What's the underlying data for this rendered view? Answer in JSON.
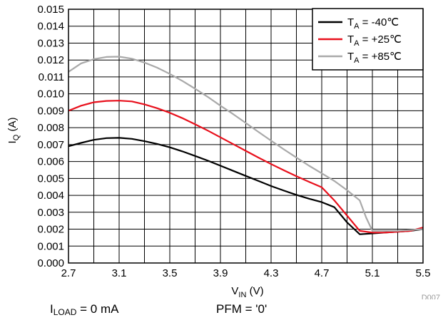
{
  "chart_data": {
    "type": "line",
    "xlabel": {
      "main": "V",
      "sub": "IN",
      "suffix": " (V)"
    },
    "ylabel": {
      "main": "I",
      "sub": "Q",
      "suffix": " (A)"
    },
    "xlim": [
      2.7,
      5.5
    ],
    "ylim": [
      0,
      0.015
    ],
    "x_ticks": [
      "2.7",
      "3.1",
      "3.5",
      "3.9",
      "4.3",
      "4.7",
      "5.1",
      "5.5"
    ],
    "y_ticks": [
      "0.000",
      "0.001",
      "0.002",
      "0.003",
      "0.004",
      "0.005",
      "0.006",
      "0.007",
      "0.008",
      "0.009",
      "0.010",
      "0.011",
      "0.012",
      "0.013",
      "0.014",
      "0.015"
    ],
    "grid": true,
    "legend_position": "top-right",
    "series": [
      {
        "label": {
          "main": "T",
          "sub": "A",
          "suffix": " = -40℃"
        },
        "color": "#000000",
        "points": [
          [
            2.7,
            0.0069
          ],
          [
            2.8,
            0.0071
          ],
          [
            2.9,
            0.00728
          ],
          [
            3.0,
            0.00738
          ],
          [
            3.1,
            0.0074
          ],
          [
            3.2,
            0.00734
          ],
          [
            3.3,
            0.0072
          ],
          [
            3.4,
            0.00704
          ],
          [
            3.5,
            0.00684
          ],
          [
            3.6,
            0.0066
          ],
          [
            3.7,
            0.00633
          ],
          [
            3.8,
            0.00605
          ],
          [
            3.9,
            0.00575
          ],
          [
            4.0,
            0.00545
          ],
          [
            4.1,
            0.00515
          ],
          [
            4.2,
            0.00485
          ],
          [
            4.3,
            0.00455
          ],
          [
            4.4,
            0.00428
          ],
          [
            4.5,
            0.00403
          ],
          [
            4.6,
            0.0038
          ],
          [
            4.7,
            0.0036
          ],
          [
            4.8,
            0.0033
          ],
          [
            4.9,
            0.0024
          ],
          [
            5.0,
            0.0017
          ],
          [
            5.1,
            0.00175
          ],
          [
            5.2,
            0.0018
          ],
          [
            5.3,
            0.00185
          ],
          [
            5.4,
            0.0019
          ],
          [
            5.5,
            0.002
          ]
        ]
      },
      {
        "label": {
          "main": "T",
          "sub": "A",
          "suffix": " = +25℃"
        },
        "color": "#e8101c",
        "points": [
          [
            2.7,
            0.009
          ],
          [
            2.8,
            0.0093
          ],
          [
            2.9,
            0.0095
          ],
          [
            3.0,
            0.00958
          ],
          [
            3.1,
            0.0096
          ],
          [
            3.2,
            0.00955
          ],
          [
            3.3,
            0.00938
          ],
          [
            3.4,
            0.00915
          ],
          [
            3.5,
            0.00888
          ],
          [
            3.6,
            0.00856
          ],
          [
            3.7,
            0.0082
          ],
          [
            3.8,
            0.00783
          ],
          [
            3.9,
            0.00743
          ],
          [
            4.0,
            0.00703
          ],
          [
            4.1,
            0.00663
          ],
          [
            4.2,
            0.00623
          ],
          [
            4.3,
            0.00585
          ],
          [
            4.4,
            0.00548
          ],
          [
            4.5,
            0.00513
          ],
          [
            4.6,
            0.0048
          ],
          [
            4.7,
            0.00448
          ],
          [
            4.8,
            0.0037
          ],
          [
            4.9,
            0.0028
          ],
          [
            5.0,
            0.0019
          ],
          [
            5.1,
            0.0018
          ],
          [
            5.2,
            0.0018
          ],
          [
            5.3,
            0.00185
          ],
          [
            5.4,
            0.0019
          ],
          [
            5.5,
            0.0021
          ]
        ]
      },
      {
        "label": {
          "main": "T",
          "sub": "A",
          "suffix": " = +85℃"
        },
        "color": "#a9a9a9",
        "points": [
          [
            2.7,
            0.0113
          ],
          [
            2.8,
            0.0118
          ],
          [
            2.9,
            0.01205
          ],
          [
            3.0,
            0.01218
          ],
          [
            3.1,
            0.0122
          ],
          [
            3.2,
            0.01208
          ],
          [
            3.3,
            0.01185
          ],
          [
            3.4,
            0.01155
          ],
          [
            3.5,
            0.01118
          ],
          [
            3.6,
            0.01076
          ],
          [
            3.7,
            0.0103
          ],
          [
            3.8,
            0.00982
          ],
          [
            3.9,
            0.0093
          ],
          [
            4.0,
            0.0088
          ],
          [
            4.1,
            0.00828
          ],
          [
            4.2,
            0.00775
          ],
          [
            4.3,
            0.00723
          ],
          [
            4.4,
            0.00672
          ],
          [
            4.5,
            0.00623
          ],
          [
            4.6,
            0.00575
          ],
          [
            4.7,
            0.0053
          ],
          [
            4.8,
            0.00485
          ],
          [
            4.9,
            0.0043
          ],
          [
            5.0,
            0.0037
          ],
          [
            5.05,
            0.0027
          ],
          [
            5.1,
            0.0019
          ],
          [
            5.2,
            0.0019
          ],
          [
            5.3,
            0.0019
          ],
          [
            5.4,
            0.00195
          ],
          [
            5.5,
            0.002
          ]
        ]
      }
    ]
  },
  "figure_id": "D007",
  "captions": {
    "load": {
      "main": "I",
      "sub": "LOAD",
      "suffix": " = 0 mA"
    },
    "mode": "PFM = '0'"
  }
}
